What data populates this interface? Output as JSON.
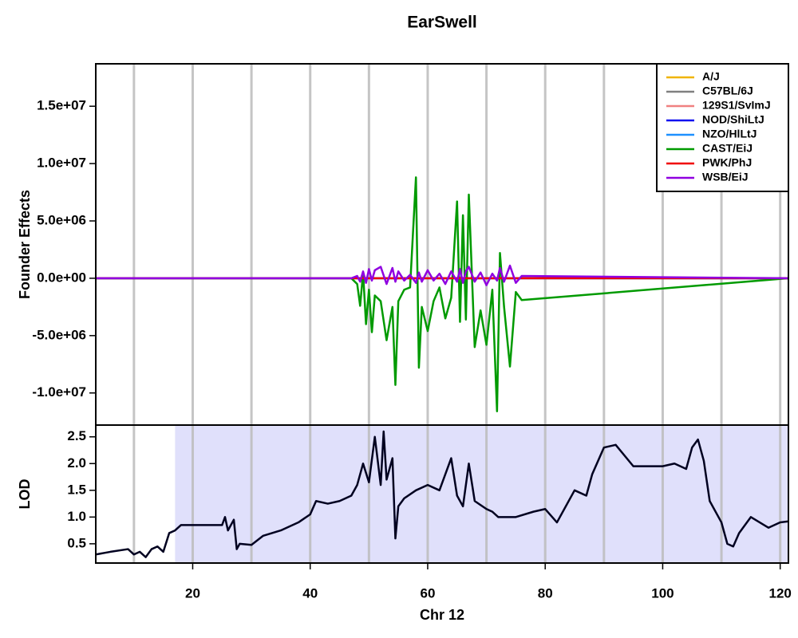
{
  "chart_data": [
    {
      "type": "line",
      "title": "EarSwell",
      "ylabel": "Founder Effects",
      "xlim": [
        3.5,
        121.4
      ],
      "xgrid": [
        10,
        20,
        30,
        40,
        50,
        60,
        70,
        80,
        90,
        100,
        110,
        120
      ],
      "ylim": [
        -12800000,
        18700000
      ],
      "yticks": [
        {
          "value": -10000000,
          "label": "-1.0e+07"
        },
        {
          "value": -5000000,
          "label": "-5.0e+06"
        },
        {
          "value": 0,
          "label": "0.0e+00"
        },
        {
          "value": 5000000,
          "label": "5.0e+06"
        },
        {
          "value": 10000000,
          "label": "1.0e+07"
        },
        {
          "value": 15000000,
          "label": "1.5e+07"
        }
      ],
      "legend": "topright",
      "x": [
        3.5,
        47,
        48,
        48.5,
        49,
        49.5,
        50,
        50.5,
        51,
        52,
        53,
        54,
        54.5,
        55,
        56,
        57,
        58,
        58.5,
        59,
        60,
        61,
        62,
        63,
        64,
        65,
        65.5,
        66,
        66.5,
        67,
        68,
        69,
        70,
        71,
        71.8,
        72.3,
        73,
        74,
        75,
        76,
        121.4
      ],
      "series": [
        {
          "name": "A/J",
          "color": "#f0b400",
          "values": [
            0,
            0,
            0,
            0,
            0,
            0,
            0,
            0,
            0,
            0,
            0,
            0,
            0,
            0,
            0,
            0,
            0,
            0,
            0,
            0,
            0,
            0,
            0,
            0,
            0,
            0,
            0,
            0,
            0,
            0,
            0,
            0,
            0,
            0,
            0,
            0,
            0,
            0,
            0,
            0
          ]
        },
        {
          "name": "C57BL/6J",
          "color": "#808080",
          "values": [
            0,
            0,
            0,
            0,
            0,
            0,
            0,
            0,
            0,
            0,
            0,
            0,
            0,
            0,
            0,
            0,
            0,
            0,
            0,
            0,
            0,
            0,
            0,
            0,
            0,
            0,
            0,
            0,
            0,
            0,
            0,
            0,
            0,
            0,
            0,
            0,
            0,
            0,
            0,
            0
          ]
        },
        {
          "name": "129S1/SvImJ",
          "color": "#f08080",
          "values": [
            0,
            0,
            0,
            0,
            0,
            0,
            0,
            0,
            0,
            0,
            0,
            0,
            0,
            0,
            0,
            0,
            0,
            0,
            0,
            0,
            0,
            0,
            0,
            0,
            0,
            0,
            0,
            0,
            0,
            0,
            0,
            0,
            0,
            0,
            0,
            0,
            0,
            0,
            0,
            0
          ]
        },
        {
          "name": "NOD/ShiLtJ",
          "color": "#1010f0",
          "values": [
            0,
            0,
            0,
            0,
            0,
            0,
            0,
            0,
            0,
            0,
            0,
            0,
            0,
            0,
            0,
            0,
            0,
            0,
            0,
            0,
            0,
            0,
            0,
            0,
            0,
            0,
            0,
            0,
            0,
            0,
            0,
            0,
            0,
            0,
            0,
            0,
            0,
            0,
            0,
            0
          ]
        },
        {
          "name": "NZO/HlLtJ",
          "color": "#1e90ff",
          "values": [
            0,
            0,
            0,
            0,
            0,
            0,
            0,
            0,
            0,
            0,
            0,
            0,
            0,
            0,
            0,
            0,
            0,
            0,
            0,
            0,
            0,
            0,
            0,
            0,
            0,
            0,
            0,
            0,
            0,
            0,
            0,
            0,
            0,
            0,
            0,
            0,
            0,
            0,
            0,
            0
          ]
        },
        {
          "name": "CAST/EiJ",
          "color": "#009a00",
          "values": [
            0,
            0,
            -500000,
            -2400000,
            500000,
            -4000000,
            -1000000,
            -4700000,
            -1500000,
            -2000000,
            -5400000,
            -2500000,
            -9300000,
            -2000000,
            -1000000,
            -800000,
            8800000,
            -7800000,
            -2500000,
            -4600000,
            -2000000,
            -800000,
            -3500000,
            -1700000,
            6700000,
            -3800000,
            5500000,
            -3600000,
            7300000,
            -6000000,
            -2800000,
            -5800000,
            -1000000,
            -11600000,
            2200000,
            -2500000,
            -7700000,
            -1200000,
            -1900000,
            0
          ]
        },
        {
          "name": "PWK/PhJ",
          "color": "#f00000",
          "values": [
            0,
            0,
            0,
            0,
            0,
            0,
            0,
            0,
            0,
            0,
            0,
            0,
            0,
            0,
            0,
            0,
            0,
            0,
            0,
            0,
            0,
            0,
            0,
            0,
            0,
            0,
            0,
            0,
            0,
            0,
            0,
            0,
            0,
            0,
            0,
            0,
            0,
            0,
            0,
            0
          ]
        },
        {
          "name": "WSB/EiJ",
          "color": "#9000e0",
          "values": [
            0,
            0,
            200000,
            -300000,
            600000,
            -400000,
            800000,
            -200000,
            700000,
            1000000,
            -500000,
            900000,
            -300000,
            600000,
            -200000,
            300000,
            -400000,
            500000,
            -300000,
            700000,
            -200000,
            400000,
            -500000,
            600000,
            -300000,
            800000,
            -400000,
            600000,
            1000000,
            -300000,
            500000,
            -600000,
            400000,
            -200000,
            900000,
            -300000,
            1100000,
            -400000,
            200000,
            0
          ]
        }
      ]
    },
    {
      "type": "line",
      "ylabel": "LOD",
      "xlabel": "Chr 12",
      "xlim": [
        3.5,
        121.4
      ],
      "xticks": [
        20,
        40,
        60,
        80,
        100,
        120
      ],
      "xgrid": [
        10,
        20,
        30,
        40,
        50,
        60,
        70,
        80,
        90,
        100,
        110,
        120
      ],
      "ylim": [
        0.14,
        2.72
      ],
      "yticks": [
        0.5,
        {
          "value": 1,
          "label": "1.0"
        },
        1.5,
        {
          "value": 2,
          "label": "2.0"
        },
        2.5
      ],
      "interval": [
        17,
        121.4
      ],
      "interval_color": "#e0e0fb",
      "x": [
        3.5,
        6,
        9,
        10,
        11,
        12,
        13,
        14,
        15,
        16,
        17,
        18,
        25,
        25.5,
        26,
        27,
        27.5,
        28,
        30,
        32,
        35,
        38,
        40,
        41,
        43,
        45,
        47,
        48,
        49,
        50,
        51,
        52,
        52.5,
        53,
        54,
        54.5,
        55,
        56,
        58,
        60,
        62,
        64,
        65,
        66,
        67,
        68,
        70,
        71,
        72,
        75,
        78,
        80,
        82,
        85,
        87,
        88,
        90,
        92,
        95,
        100,
        102,
        104,
        105,
        106,
        107,
        108,
        110,
        111,
        112,
        113,
        115,
        118,
        120,
        121.4
      ],
      "series": [
        {
          "name": "LOD",
          "color": "#000020",
          "values": [
            0.3,
            0.35,
            0.4,
            0.3,
            0.35,
            0.25,
            0.4,
            0.45,
            0.35,
            0.7,
            0.75,
            0.85,
            0.85,
            1.0,
            0.75,
            0.95,
            0.4,
            0.5,
            0.48,
            0.65,
            0.75,
            0.9,
            1.05,
            1.3,
            1.25,
            1.3,
            1.4,
            1.6,
            2.0,
            1.65,
            2.5,
            1.6,
            2.6,
            1.7,
            2.1,
            0.6,
            1.2,
            1.35,
            1.5,
            1.6,
            1.5,
            2.1,
            1.4,
            1.2,
            2.0,
            1.3,
            1.15,
            1.1,
            1.0,
            1.0,
            1.1,
            1.15,
            0.9,
            1.5,
            1.4,
            1.8,
            2.3,
            2.35,
            1.95,
            1.95,
            2.0,
            1.9,
            2.3,
            2.45,
            2.05,
            1.3,
            0.9,
            0.5,
            0.45,
            0.7,
            1.0,
            0.8,
            0.9,
            0.92
          ]
        }
      ]
    }
  ]
}
